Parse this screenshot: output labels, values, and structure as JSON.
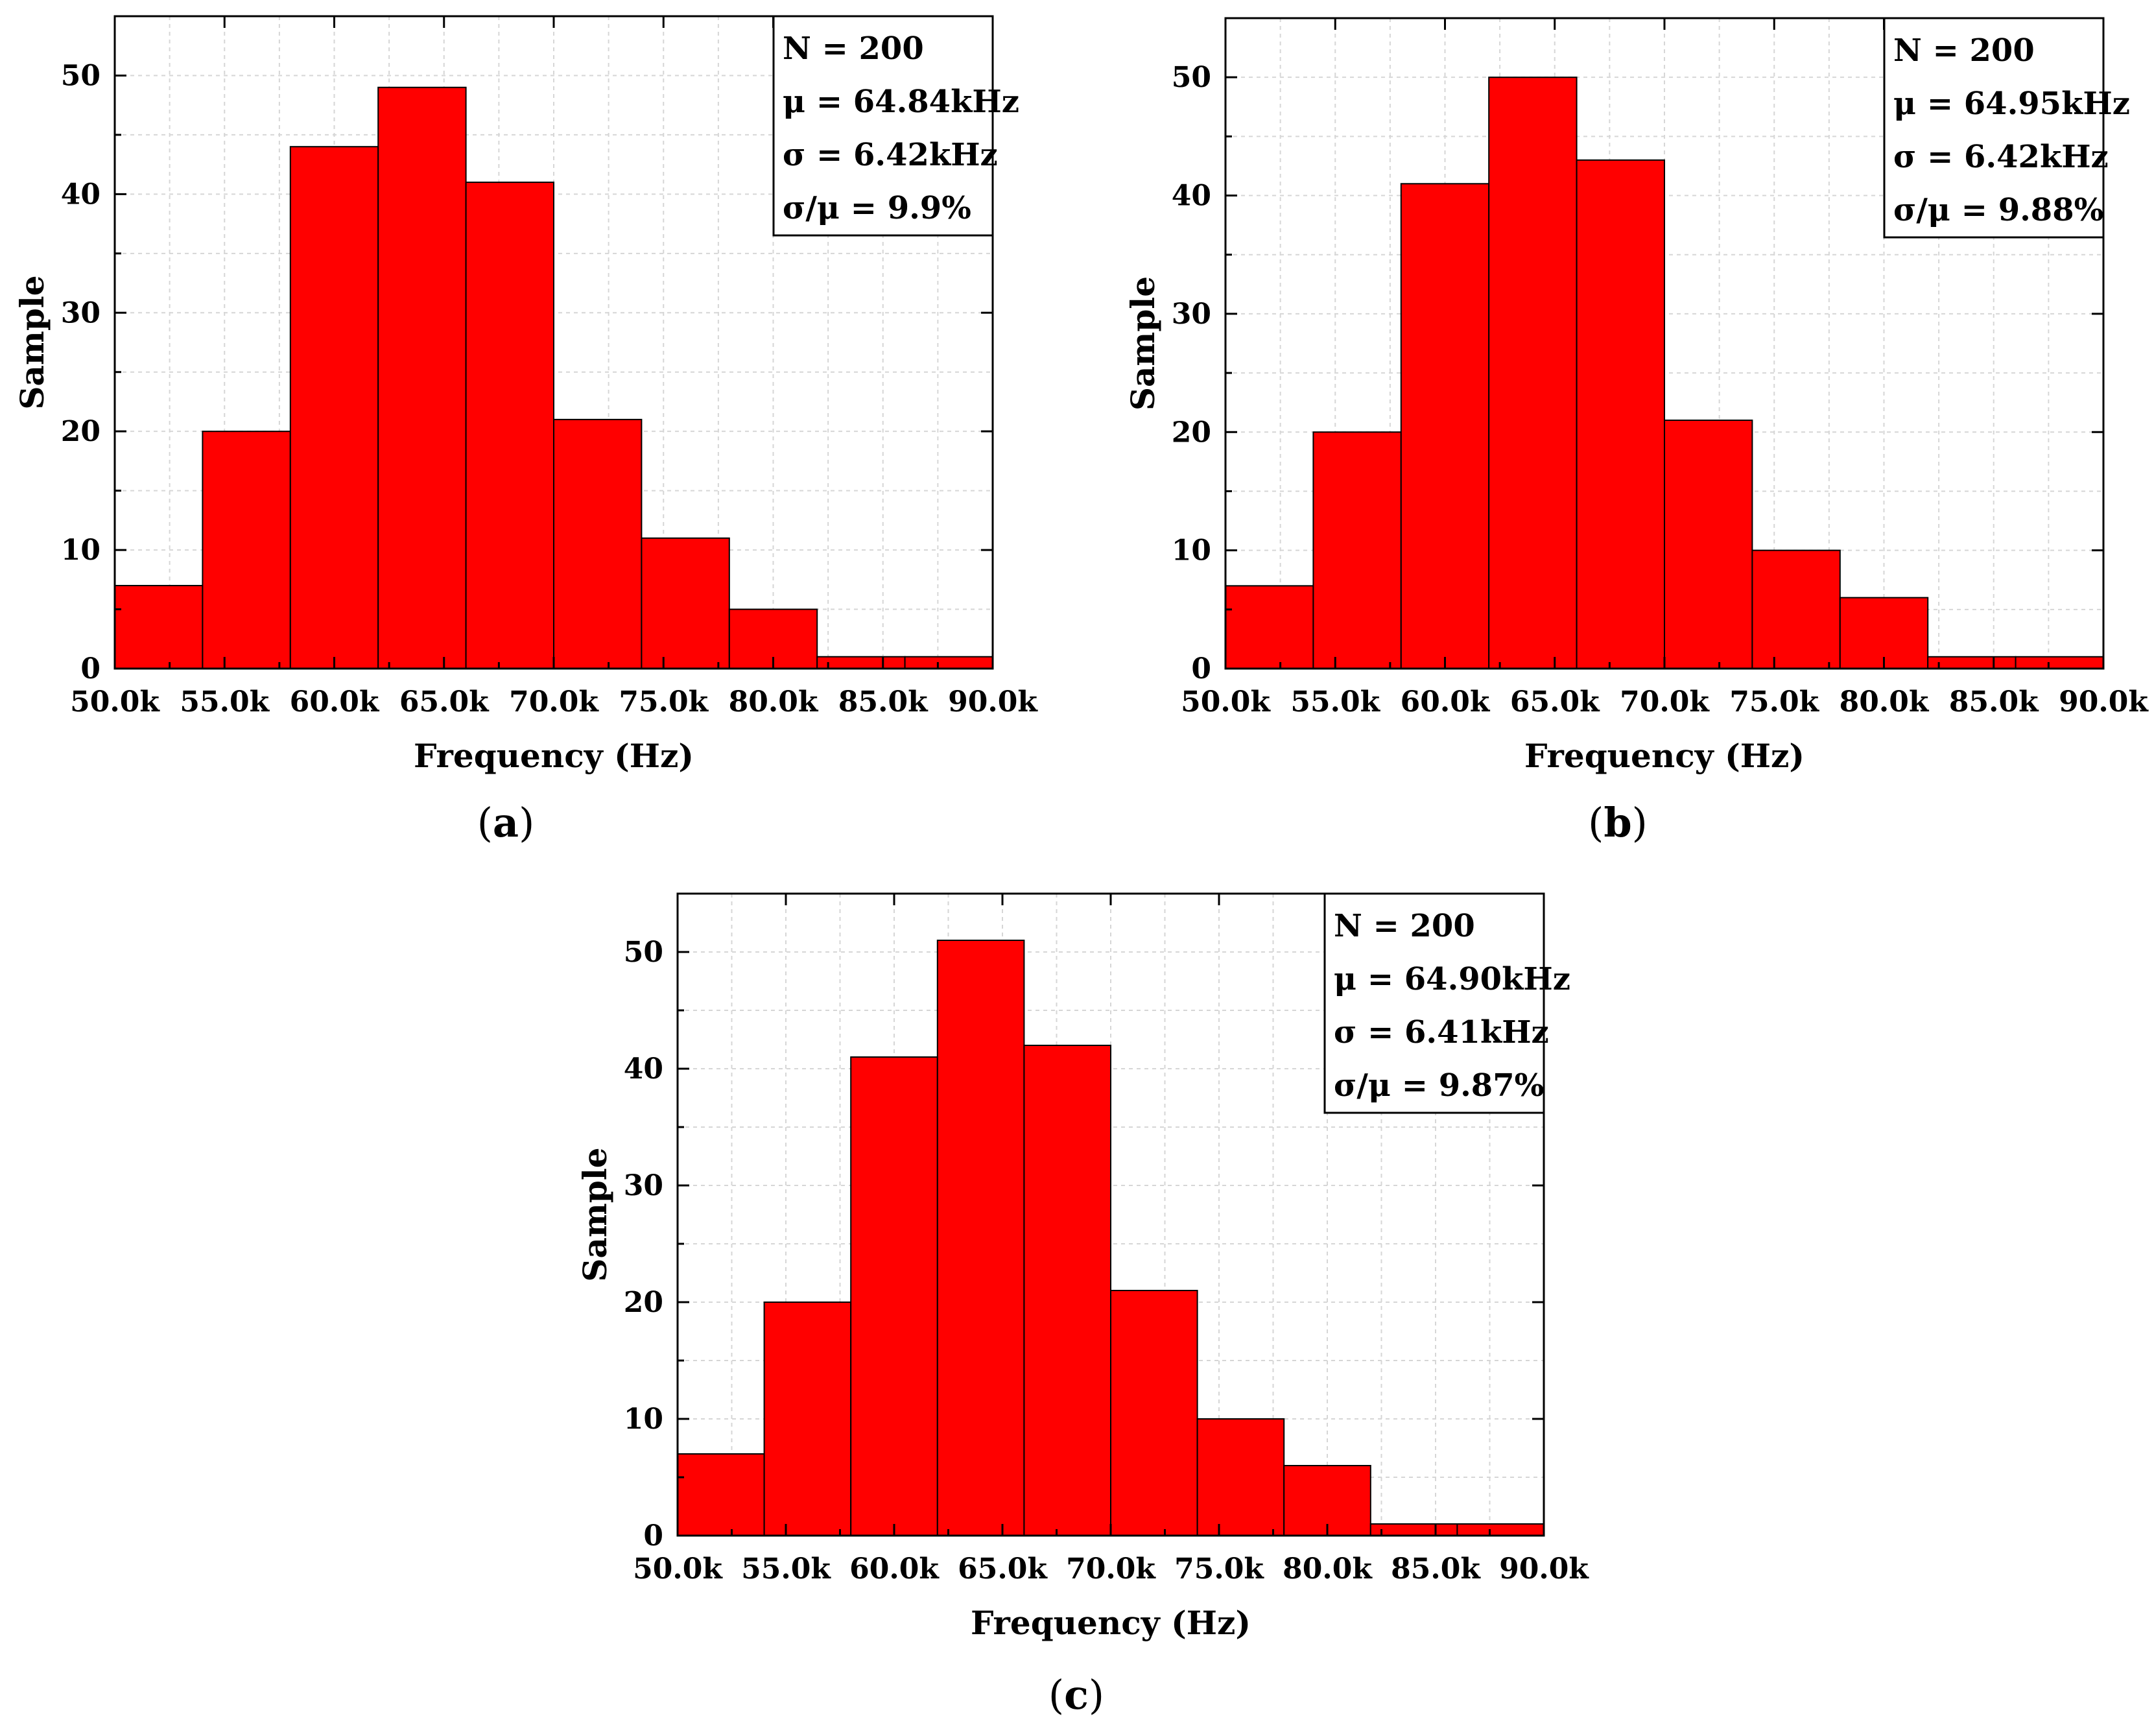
{
  "chart_data": [
    {
      "type": "bar",
      "panel_label": "a",
      "title": "",
      "xlabel": "Frequency (Hz)",
      "ylabel": "Sample",
      "xlim": [
        50000,
        90000
      ],
      "ylim": [
        0,
        55
      ],
      "bin_edges": [
        50000,
        54000,
        58000,
        62000,
        66000,
        70000,
        74000,
        78000,
        82000,
        86000,
        90000
      ],
      "values": [
        7,
        20,
        44,
        49,
        41,
        21,
        11,
        5,
        1,
        1
      ],
      "x_tick_values": [
        50000,
        55000,
        60000,
        65000,
        70000,
        75000,
        80000,
        85000,
        90000
      ],
      "x_tick_labels": [
        "50.0k",
        "55.0k",
        "60.0k",
        "65.0k",
        "70.0k",
        "75.0k",
        "80.0k",
        "85.0k",
        "90.0k"
      ],
      "y_tick_values": [
        0,
        10,
        20,
        30,
        40,
        50
      ],
      "y_tick_labels": [
        "0",
        "10",
        "20",
        "30",
        "40",
        "50"
      ],
      "grid": true,
      "legend_position": "top-right",
      "stats": [
        "N = 200",
        "μ = 64.84kHz",
        "σ = 6.42kHz",
        "σ/μ = 9.9%"
      ]
    },
    {
      "type": "bar",
      "panel_label": "b",
      "title": "",
      "xlabel": "Frequency (Hz)",
      "ylabel": "Sample",
      "xlim": [
        50000,
        90000
      ],
      "ylim": [
        0,
        55
      ],
      "bin_edges": [
        50000,
        54000,
        58000,
        62000,
        66000,
        70000,
        74000,
        78000,
        82000,
        86000,
        90000
      ],
      "values": [
        7,
        20,
        41,
        50,
        43,
        21,
        10,
        6,
        1,
        1
      ],
      "x_tick_values": [
        50000,
        55000,
        60000,
        65000,
        70000,
        75000,
        80000,
        85000,
        90000
      ],
      "x_tick_labels": [
        "50.0k",
        "55.0k",
        "60.0k",
        "65.0k",
        "70.0k",
        "75.0k",
        "80.0k",
        "85.0k",
        "90.0k"
      ],
      "y_tick_values": [
        0,
        10,
        20,
        30,
        40,
        50
      ],
      "y_tick_labels": [
        "0",
        "10",
        "20",
        "30",
        "40",
        "50"
      ],
      "grid": true,
      "legend_position": "top-right",
      "stats": [
        "N = 200",
        "μ = 64.95kHz",
        "σ = 6.42kHz",
        "σ/μ = 9.88%"
      ]
    },
    {
      "type": "bar",
      "panel_label": "c",
      "title": "",
      "xlabel": "Frequency (Hz)",
      "ylabel": "Sample",
      "xlim": [
        50000,
        90000
      ],
      "ylim": [
        0,
        55
      ],
      "bin_edges": [
        50000,
        54000,
        58000,
        62000,
        66000,
        70000,
        74000,
        78000,
        82000,
        86000,
        90000
      ],
      "values": [
        7,
        20,
        41,
        51,
        42,
        21,
        10,
        6,
        1,
        1
      ],
      "x_tick_values": [
        50000,
        55000,
        60000,
        65000,
        70000,
        75000,
        80000,
        85000,
        90000
      ],
      "x_tick_labels": [
        "50.0k",
        "55.0k",
        "60.0k",
        "65.0k",
        "70.0k",
        "75.0k",
        "80.0k",
        "85.0k",
        "90.0k"
      ],
      "y_tick_values": [
        0,
        10,
        20,
        30,
        40,
        50
      ],
      "y_tick_labels": [
        "0",
        "10",
        "20",
        "30",
        "40",
        "50"
      ],
      "grid": true,
      "legend_position": "top-right",
      "stats": [
        "N = 200",
        "μ = 64.90kHz",
        "σ = 6.41kHz",
        "σ/μ = 9.87%"
      ]
    }
  ],
  "colors": {
    "bar_fill": "#ff0000",
    "bar_edge": "#000000",
    "grid": "#d6d6d6",
    "background": "#ffffff"
  }
}
